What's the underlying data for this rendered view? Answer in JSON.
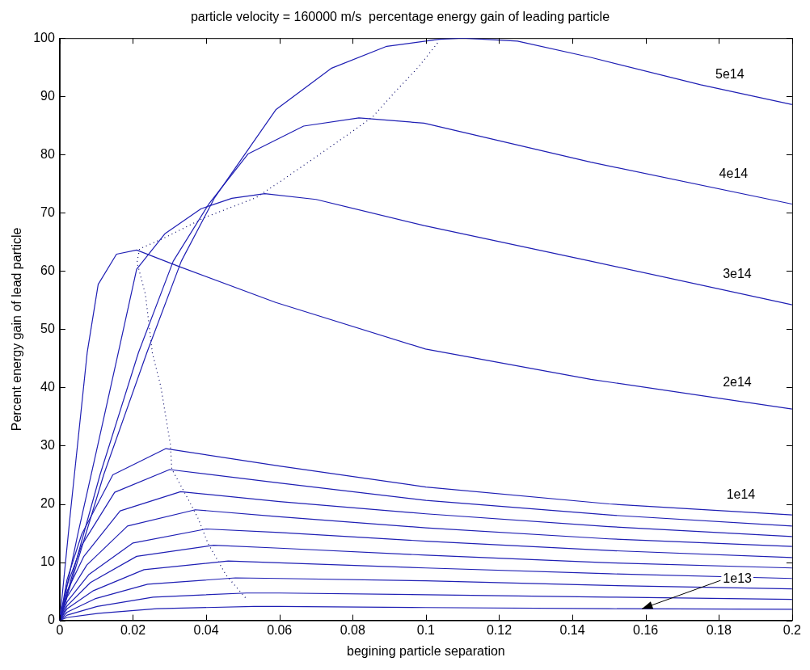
{
  "chart_data": {
    "type": "line",
    "title": "particle velocity = 160000 m/s  percentage energy gain of leading particle",
    "xlabel": "begining particle separation",
    "ylabel": "Percent energy gain of lead particle",
    "xlim": [
      0,
      0.2
    ],
    "xticks": [
      0,
      0.02,
      0.04,
      0.06,
      0.08,
      0.1,
      0.12,
      0.14,
      0.16,
      0.18,
      0.2
    ],
    "ylim": [
      0,
      100
    ],
    "yticks": [
      0,
      10,
      20,
      30,
      40,
      50,
      60,
      70,
      80,
      90,
      100
    ],
    "series": [
      {
        "color": "#1f1fb4",
        "x": [
          0,
          0.012,
          0.0238,
          0.0332,
          0.0423,
          0.059,
          0.0741,
          0.0893,
          0.1036,
          0.11,
          0.125,
          0.145,
          0.175,
          0.2
        ],
        "values": [
          0,
          25,
          46,
          61.7,
          72.6,
          87.7,
          94.8,
          98.6,
          99.8,
          100,
          99.5,
          96.7,
          92,
          88.6
        ]
      },
      {
        "color": "#1f1fb4",
        "x": [
          0,
          0.011,
          0.0215,
          0.031,
          0.0408,
          0.0514,
          0.0666,
          0.0817,
          0.0995,
          0.145,
          0.2
        ],
        "values": [
          0,
          25,
          46,
          61.7,
          71.6,
          80.1,
          84.9,
          86.3,
          85.4,
          78.7,
          71.5
        ]
      },
      {
        "color": "#1f1fb4",
        "x": [
          0,
          0.005,
          0.01,
          0.016,
          0.021,
          0.0287,
          0.0386,
          0.047,
          0.056,
          0.07,
          0.0995,
          0.145,
          0.2
        ],
        "values": [
          0,
          15,
          29,
          46,
          60.3,
          66.4,
          70.7,
          72.5,
          73.3,
          72.3,
          67.8,
          61.7,
          54.2
        ]
      },
      {
        "color": "#1f1fb4",
        "x": [
          0,
          0.003,
          0.0075,
          0.0105,
          0.0155,
          0.021,
          0.0325,
          0.059,
          0.0999,
          0.145,
          0.2
        ],
        "values": [
          0,
          19,
          46,
          57.7,
          62.9,
          63.6,
          60.8,
          54.6,
          46.6,
          41.4,
          36.3
        ]
      },
      {
        "color": "#1f1fb4",
        "x": [
          0,
          0.002,
          0.006,
          0.0145,
          0.029,
          0.06,
          0.1,
          0.15,
          0.2
        ],
        "values": [
          0,
          7,
          14.8,
          25,
          29.5,
          26.5,
          22.9,
          20,
          18.1
        ]
      },
      {
        "color": "#1f1fb4",
        "x": [
          0,
          0.002,
          0.006,
          0.015,
          0.03,
          0.06,
          0.1,
          0.15,
          0.2
        ],
        "values": [
          0,
          6,
          12.9,
          22,
          25.9,
          23.6,
          20.6,
          18.1,
          16.2
        ]
      },
      {
        "color": "#1f1fb4",
        "x": [
          0,
          0.002,
          0.0066,
          0.0165,
          0.033,
          0.06,
          0.1,
          0.15,
          0.2
        ],
        "values": [
          0,
          5,
          11,
          18.8,
          22.1,
          20.4,
          18.3,
          16.1,
          14.4
        ]
      },
      {
        "color": "#1f1fb4",
        "x": [
          0,
          0.002,
          0.0074,
          0.0185,
          0.037,
          0.06,
          0.1,
          0.15,
          0.2
        ],
        "values": [
          0,
          4,
          9.5,
          16.2,
          19,
          17.8,
          15.9,
          14,
          12.7
        ]
      },
      {
        "color": "#1f1fb4",
        "x": [
          0,
          0.002,
          0.008,
          0.02,
          0.04,
          0.06,
          0.1,
          0.15,
          0.2
        ],
        "values": [
          0,
          3.2,
          7.9,
          13.3,
          15.7,
          15.1,
          13.6,
          12,
          10.8
        ]
      },
      {
        "color": "#1f1fb4",
        "x": [
          0,
          0.002,
          0.0084,
          0.021,
          0.042,
          0.06,
          0.1,
          0.15,
          0.2
        ],
        "values": [
          0,
          2.5,
          6.5,
          11,
          12.9,
          12.4,
          11.2,
          9.9,
          9
        ]
      },
      {
        "color": "#1f1fb4",
        "x": [
          0,
          0.002,
          0.0092,
          0.023,
          0.046,
          0.06,
          0.1,
          0.15,
          0.2
        ],
        "values": [
          0,
          2,
          5.1,
          8.7,
          10.2,
          9.9,
          9,
          8,
          7.2
        ]
      },
      {
        "color": "#1f1fb4",
        "x": [
          0,
          0.002,
          0.0096,
          0.024,
          0.048,
          0.06,
          0.1,
          0.15,
          0.2
        ],
        "values": [
          0,
          1.4,
          3.7,
          6.2,
          7.3,
          7.2,
          6.8,
          6,
          5.4
        ]
      },
      {
        "color": "#1f1fb4",
        "x": [
          0,
          0.002,
          0.0102,
          0.0255,
          0.051,
          0.06,
          0.1,
          0.15,
          0.2
        ],
        "values": [
          0,
          0.9,
          2.4,
          4,
          4.7,
          4.7,
          4.4,
          4,
          3.6
        ]
      },
      {
        "color": "#1f1fb4",
        "x": [
          0,
          0.002,
          0.0106,
          0.0265,
          0.053,
          0.06,
          0.1,
          0.15,
          0.2
        ],
        "values": [
          0,
          0.5,
          1.2,
          2,
          2.4,
          2.4,
          2.2,
          2,
          1.9
        ]
      },
      {
        "color": "#000066",
        "line_style": "dotted",
        "x": [
          0.0507,
          0.0454,
          0.0405,
          0.0378,
          0.0355,
          0.0306,
          0.0302,
          0.029,
          0.0276,
          0.0253,
          0.0234,
          0.0211,
          0.0218,
          0.0286,
          0.04,
          0.0536,
          0.0605,
          0.0695,
          0.0786,
          0.0855,
          0.0916,
          0.0979,
          0.1036
        ],
        "values": [
          3.9,
          7.8,
          13.2,
          17.5,
          20.3,
          26,
          30.3,
          34.8,
          40.2,
          45.9,
          56,
          61.5,
          63.8,
          65.7,
          69.3,
          72.6,
          75.5,
          79.4,
          83.4,
          86.5,
          90.8,
          95,
          99.5
        ]
      }
    ],
    "annotations": [
      {
        "text": "5e14",
        "x": 0.183,
        "y": 90.6
      },
      {
        "text": "4e14",
        "x": 0.184,
        "y": 73.6
      },
      {
        "text": "3e14",
        "x": 0.185,
        "y": 56.3
      },
      {
        "text": "2e14",
        "x": 0.185,
        "y": 37.7
      },
      {
        "text": "1e14",
        "x": 0.186,
        "y": 18.5
      },
      {
        "text": "1e13",
        "x": 0.159,
        "y": 2
      }
    ]
  }
}
